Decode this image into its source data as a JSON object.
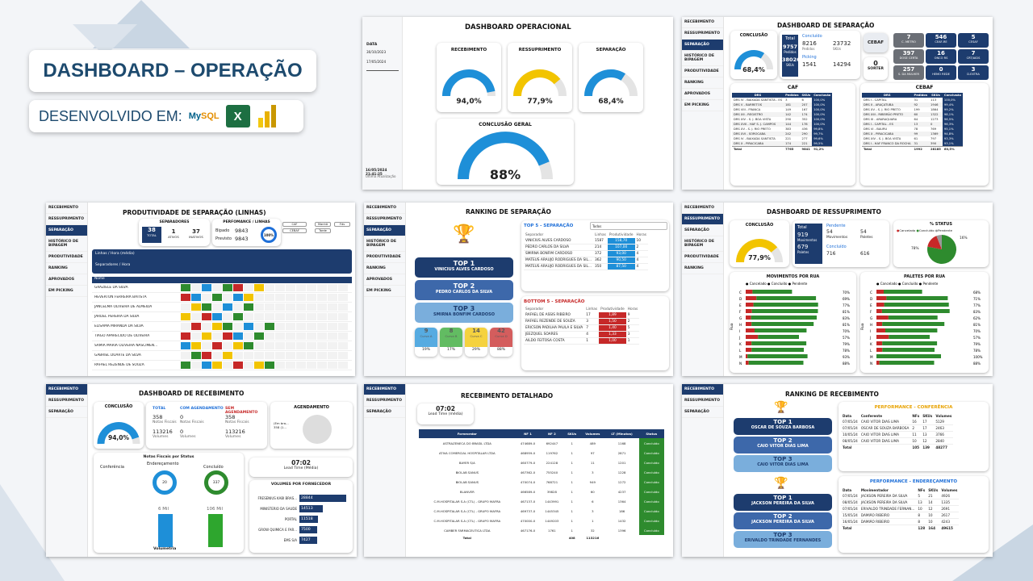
{
  "header": {
    "title": "DASHBOARD – OPERAÇÃO",
    "subtitle": "DESENVOLVIDO EM:",
    "tools": [
      "mysql-logo",
      "excel-logo",
      "powerbi-logo"
    ]
  },
  "colors": {
    "navy": "#1d3c6e",
    "blue": "#1e8fd8",
    "yellow": "#f2c400",
    "green": "#2e8b2e",
    "red": "#c62828"
  },
  "p1": {
    "title": "DASHBOARD OPERACIONAL",
    "filter_label": "DATA",
    "date_from": "30/10/2023",
    "date_to": "17/05/2024",
    "updated": "16/05/2024 21:41:25",
    "updated_label": "Ultima Atualização",
    "gauges": [
      {
        "label": "RECEBIMENTO",
        "value": "94,0%",
        "pct": 0.94,
        "color": "#1e8fd8"
      },
      {
        "label": "RESSUPRIMENTO",
        "value": "77,9%",
        "pct": 0.779,
        "color": "#f2c400"
      },
      {
        "label": "SEPARAÇÃO",
        "value": "68,4%",
        "pct": 0.684,
        "color": "#1e8fd8"
      }
    ],
    "geral_label": "CONCLUSÃO GERAL",
    "geral_value": "88%",
    "geral_pct": 0.88
  },
  "p2": {
    "title": "DASHBOARD DE SEPARAÇÃO",
    "menu": [
      "RECEBIMENTO",
      "RESSUPRIMENTO",
      "SEPARAÇÃO",
      "HISTÓRICO DE BIPAGEM",
      "PRODUTIVIDADE",
      "RANKING",
      "APROVADOS",
      "EM PICKING"
    ],
    "conclusao_label": "CONCLUSÃO",
    "conclusao_value": "68,4%",
    "conclusao_pct": 0.684,
    "total_label": "Total",
    "total_pedidos": "9757",
    "total_pedidos_label": "Pedidos",
    "total_skus": "38026",
    "total_skus_label": "SKUs",
    "concluido_label": "Concluído",
    "concluido_pedidos": "8216",
    "concluido_skus": "23732",
    "picking_label": "Picking",
    "picking_pedidos": "1541",
    "picking_skus": "14294",
    "pedidos_label": "Pedidos",
    "skus_label": "SKUs",
    "cebaf_label": "CEBAF",
    "sorter_value": "0",
    "sorter_label": "SORTER",
    "tiles": [
      {
        "v": "7",
        "l": "C. METRO"
      },
      {
        "v": "546",
        "l": "CEAF-RE"
      },
      {
        "v": "5",
        "l": "CESAF"
      },
      {
        "v": "397",
        "l": "DOSE CERTA"
      },
      {
        "v": "16",
        "l": "ONCO RS"
      },
      {
        "v": "7",
        "l": "CRT/AIDS"
      },
      {
        "v": "257",
        "l": "S. DA MULHER"
      },
      {
        "v": "0",
        "l": "HEMO REDE"
      },
      {
        "v": "3",
        "l": "D.EXTRA"
      }
    ],
    "caf": {
      "title": "CAF",
      "headers": [
        "DRS",
        "Pedidos",
        "SKUs",
        "Conclusão"
      ],
      "rows": [
        [
          "DRS IV - BAIXADA SANTISTA - ES",
          "3",
          "6",
          "100,0%"
        ],
        [
          "DRS V - BARRETOS",
          "181",
          "207",
          "100,0%"
        ],
        [
          "DRS VIII - FRANCA",
          "149",
          "167",
          "100,0%"
        ],
        [
          "DRS XII - REGISTRO",
          "142",
          "174",
          "100,0%"
        ],
        [
          "DRS XIV - S. J. BOA VISTA",
          "290",
          "352",
          "100,0%"
        ],
        [
          "DRS XVII - HAF S. J. CAMPOS",
          "144",
          "178",
          "100,0%"
        ],
        [
          "DRS XV - S. J. RIO PRETO",
          "383",
          "436",
          "99,8%"
        ],
        [
          "DRS XVI - SOROCABA",
          "242",
          "290",
          "99,7%"
        ],
        [
          "DRS IV - BAIXADA SANTISTA",
          "221",
          "277",
          "99,6%"
        ],
        [
          "DRS X - PIRACICABA",
          "174",
          "221",
          "99,5%"
        ]
      ],
      "total": [
        "Total",
        "7765",
        "9841",
        "91,2%"
      ]
    },
    "cebaf": {
      "title": "CEBAF",
      "headers": [
        "DRS",
        "Pedidos",
        "SKUs",
        "Conclusão"
      ],
      "rows": [
        [
          "DRS I - CAPITAL",
          "31",
          "113",
          "100,0%"
        ],
        [
          "DRS II - ARAÇATUBA",
          "92",
          "1946",
          "99,4%"
        ],
        [
          "DRS XV - S. J. RIO PRETO",
          "199",
          "1864",
          "99,2%"
        ],
        [
          "DRS XIII - RIBEIRÃO PRETO",
          "60",
          "1322",
          "98,1%"
        ],
        [
          "DRS III - ARARAQUARA",
          "64",
          "1273",
          "96,5%"
        ],
        [
          "DRS I - CAPITAL - ES",
          "13",
          "0",
          "96,3%"
        ],
        [
          "DRS VI - BAURU",
          "78",
          "769",
          "95,1%"
        ],
        [
          "DRS X - PIRACICABA",
          "99",
          "1369",
          "94,8%"
        ],
        [
          "DRS XIV - S. J. BOA VISTA",
          "61",
          "797",
          "93,3%"
        ],
        [
          "DRS I - HAF FRANCO DA ROCHA",
          "31",
          "390",
          "93,1%"
        ]
      ],
      "total": [
        "Total",
        "1992",
        "28185",
        "60,5%"
      ]
    }
  },
  "p3": {
    "title": "PRODUTIVIDADE DE SEPARAÇÃO (LINHAS)",
    "sep_label": "SEPARADORES",
    "total": "38",
    "total_l": "TOTAL",
    "ativos": "1",
    "ativos_l": "ATIVOS",
    "inativos": "37",
    "inativos_l": "INATIVOS",
    "perf_label": "PERFOMANCE / LINHAS",
    "bipado_l": "Bipado",
    "bipado": "9843",
    "previsto_l": "Previsto",
    "previsto": "9843",
    "perf_pct": "100%",
    "chip1": "CAF",
    "chip2": "CEBAF",
    "chip3": "Manhã",
    "chip4": "Tarde",
    "chip5": "Fds",
    "axis_label": "Linhas / Hora (média)",
    "axis2_label": "Separadores / Hora",
    "name_header": "Nome",
    "names": [
      "GRAZIELE DA SILVA",
      "HEVERTON FERREIRA BATISTA",
      "JANCELMA OLIVEIRA DE ALMEIDA",
      "JARDEL PEREIRA DA SILVA",
      "ELISAMA MIRANDA DA SILVA",
      "TIAGO APARECIDO DE OLIVEIRA",
      "SAMIA MARIA OLIVEIRA NASCIMEN...",
      "GABRIEL DUARTE DA SILVA",
      "RAFAEL REZENDE DE SOUZA"
    ]
  },
  "p4": {
    "title": "RANKING DE SEPARAÇÃO",
    "top": [
      {
        "t": "TOP 1",
        "n": "VINICIUS ALVES CARDOSO"
      },
      {
        "t": "TOP 2",
        "n": "PEDRO CARLOS DA SILVA"
      },
      {
        "t": "TOP 3",
        "n": "SMIRNA BONFIM CARDOSO"
      }
    ],
    "curvas": [
      {
        "v": "9",
        "l": "Curva A",
        "p": "19%"
      },
      {
        "v": "8",
        "l": "Curva B",
        "p": "17%"
      },
      {
        "v": "14",
        "l": "Curva C",
        "p": "29%"
      },
      {
        "v": "42",
        "l": "Curva D",
        "p": "88%"
      }
    ],
    "top5_title": "TOP 5 - SEPARAÇÃO",
    "bottom5_title": "BOTTOM 5 - SEPARAÇÃO",
    "filter": "Todos",
    "headers": [
      "Separador",
      "Linhas",
      "Produtividade",
      "Horas"
    ],
    "top5": [
      [
        "VINICIUS ALVES CARDOSO",
        "1587",
        "158,70",
        "10"
      ],
      [
        "PEDRO CARLOS DA SILVA",
        "214",
        "107,00",
        "2"
      ],
      [
        "SMIRNA BONFIM CARDOSO",
        "372",
        "93,00",
        "4"
      ],
      [
        "MATEUS ARAUJO RODRIGUES DA SIL...",
        "362",
        "90,50",
        "4"
      ],
      [
        "MATEUS ARAUJO RODRIGUES DA SIL...",
        "350",
        "87,50",
        "4"
      ]
    ],
    "bottom5": [
      [
        "RAFAEL DE ASSIS RIBEIRO",
        "17",
        "1,89",
        "9"
      ],
      [
        "RAFAEL REZENDE DE SOUZA",
        "3",
        "1,50",
        "2"
      ],
      [
        "ERICSON PADILHA PAULA E SILVA",
        "7",
        "1,40",
        "5"
      ],
      [
        "JEEZQUEL SOARES",
        "4",
        "1,33",
        "3"
      ],
      [
        "AILDO FEITOSA COSTA",
        "1",
        "1,00",
        "1"
      ]
    ]
  },
  "p5": {
    "title": "DASHBOARD DE RESSUPRIMENTO",
    "conclusao_label": "CONCLUSÃO",
    "conclusao_value": "77,9%",
    "total_label": "Total",
    "total_mov": "919",
    "mov_l": "Movimentos",
    "total_pal": "679",
    "pal_l": "Paletes",
    "pendente_label": "Pendente",
    "pend_mov": "54",
    "pend_pal": "54",
    "concluido_label": "Concluído",
    "conc_mov": "716",
    "conc_pal": "616",
    "status_title": "% STATUS",
    "status_legend": [
      "Cancelado",
      "Concluído",
      "Pendente"
    ],
    "status_values": [
      {
        "v": 78,
        "l": "78%"
      },
      {
        "v": 16,
        "l": "16%"
      },
      {
        "v": 6,
        "l": ""
      }
    ],
    "mov_title": "MOVIMENTOS POR RUA",
    "pal_title": "PALETES POR RUA",
    "rua_label": "Rua",
    "ruas": [
      "C",
      "D",
      "E",
      "F",
      "G",
      "H",
      "I",
      "J",
      "K",
      "L",
      "M",
      "N"
    ],
    "mov_pct": [
      "70%",
      "69%",
      "77%",
      "81%",
      "83%",
      "81%",
      "70%",
      "57%",
      "79%",
      "78%",
      "93%",
      "88%"
    ],
    "pal_pct": [
      "68%",
      "71%",
      "77%",
      "83%",
      "62%",
      "81%",
      "70%",
      "57%",
      "79%",
      "78%",
      "100%",
      "88%"
    ]
  },
  "p6": {
    "title": "DASHBOARD DE RECEBIMENTO",
    "conclusao_label": "CONCLUSÃO",
    "conclusao_value": "94,0%",
    "total_label": "TOTAL",
    "com_label": "COM AGENDAMENTO",
    "sem_label": "SEM AGENDAMENTO",
    "total_nf": "358",
    "com_nf": "0",
    "sem_nf": "358",
    "nf_l": "Notas Fiscais",
    "total_vol": "113216",
    "com_vol": "0",
    "sem_vol": "113216",
    "vol_l": "Volumes",
    "agend_title": "AGENDAMENTO",
    "agend_text": "(Em bra... 358 (1...",
    "nf_status_title": "Notas Fiscais por Status",
    "stages": [
      "Conferência",
      "Endereçamento",
      "Concluído"
    ],
    "enderec_val": "20",
    "concl_val": "337",
    "vol_a": "6 Mil",
    "vol_b": "106 Mil",
    "vol_axis": "Volumetria",
    "lead_value": "07:02",
    "lead_label": "Lead Time (Média)",
    "forn_title": "VOLUMES POR FORNECEDOR",
    "fornecedores": [
      {
        "n": "FRESENIUS KABI BRAS...",
        "v": "28844",
        "w": 1.0
      },
      {
        "n": "MINISTERIO DA SAUDE",
        "v": "14513",
        "w": 0.5
      },
      {
        "n": "PORTAL",
        "v": "11518",
        "w": 0.4
      },
      {
        "n": "GROW QUIMICA E FAR...",
        "v": "7500",
        "w": 0.26
      },
      {
        "n": "EMS S/A",
        "v": "7427",
        "w": 0.26
      }
    ]
  },
  "p7": {
    "title": "RECEBIMENTO DETALHADO",
    "lead_value": "07:02",
    "lead_label": "Lead Time (média)",
    "headers": [
      "Fornecedor",
      "NF 1",
      "NF 2",
      "SKUs",
      "Volumes",
      "LT (Minutos)",
      "Status"
    ],
    "rows": [
      [
        "ASTRAZENECA DO BRASIL LTDA",
        "474689-0",
        "692447",
        "1",
        "489",
        "1168",
        "Concluído"
      ],
      [
        "ATIVA COMERCIAL HOSPITALAR LTDA",
        "468959-0",
        "119762",
        "1",
        "97",
        "2871",
        "Concluído"
      ],
      [
        "BAYER S/A",
        "460779-0",
        "224128",
        "1",
        "11",
        "1201",
        "Concluído"
      ],
      [
        "BIOLAB SANUS",
        "467362-0",
        "755240",
        "1",
        "3",
        "1228",
        "Concluído"
      ],
      [
        "BIOLAB SANUS",
        "470074-0",
        "768721",
        "1",
        "949",
        "1272",
        "Concluído"
      ],
      [
        "BLANVER",
        "466589-0",
        "39828",
        "1",
        "60",
        "4237",
        "Concluído"
      ],
      [
        "C.M.HOSPITALAR S.A (CTL) - GRUPO MAFRA",
        "467137-0",
        "1443991",
        "1",
        "6",
        "1364",
        "Concluído"
      ],
      [
        "C.M.HOSPITALAR S.A (CTL) - GRUPO MAFRA",
        "469737-0",
        "1445345",
        "1",
        "3",
        "186",
        "Concluído"
      ],
      [
        "C.M.HOSPITALAR S.A (CTL) - GRUPO MAFRA",
        "470000-0",
        "1449203",
        "1",
        "1",
        "1432",
        "Concluído"
      ],
      [
        "CAMBER FARMACEUTICA LTDA",
        "467176-0",
        "1761",
        "1",
        "32",
        "1396",
        "Concluído"
      ]
    ],
    "total": [
      "Total",
      "",
      "",
      "408",
      "113216",
      "",
      ""
    ]
  },
  "p8": {
    "title": "RANKING DE RECEBIMENTO",
    "conf_top": [
      {
        "t": "TOP 1",
        "n": "OSCAR DE SOUZA BARBOSA"
      },
      {
        "t": "TOP 2",
        "n": "CAIO VITOR DIAS LIMA"
      },
      {
        "t": "TOP 3",
        "n": "CAIO VITOR DIAS LIMA"
      }
    ],
    "end_top": [
      {
        "t": "TOP 1",
        "n": "JACKSON PEREIRA DA SILVA"
      },
      {
        "t": "TOP 2",
        "n": "JACKSON PEREIRA DA SILVA"
      },
      {
        "t": "TOP 3",
        "n": "ERIVALDO TRINDADE FERNANDES"
      }
    ],
    "conf_title": "PERFORMANCE - CONFERÊNCIA",
    "end_title": "PERFORMANCE - ENDEREÇAMENTO",
    "conf_headers": [
      "Data",
      "Conferente",
      "NFs",
      "SKUs",
      "Volumes"
    ],
    "end_headers": [
      "Data",
      "Movimentador",
      "NFs",
      "SKUs",
      "Volumes"
    ],
    "conf_rows": [
      [
        "07/05/24",
        "CAIO VITOR DIAS LIMA",
        "16",
        "17",
        "5129"
      ],
      [
        "07/05/24",
        "OSCAR DE SOUZA BARBOSA",
        "2",
        "17",
        "2463"
      ],
      [
        "10/05/24",
        "CAIO VITOR DIAS LIMA",
        "11",
        "13",
        "3766"
      ],
      [
        "08/05/24",
        "CAIO VITOR DIAS LIMA",
        "10",
        "12",
        "2840"
      ]
    ],
    "conf_total": [
      "Total",
      "",
      "105",
      "139",
      "48277"
    ],
    "end_rows": [
      [
        "07/05/24",
        "JACKSON PEREIRA DA SILVA",
        "5",
        "21",
        "4926"
      ],
      [
        "08/05/24",
        "JACKSON PEREIRA DA SILVA",
        "13",
        "14",
        "1335"
      ],
      [
        "07/05/24",
        "ERIVALDO TRINDADE FERNAN...",
        "10",
        "12",
        "2691"
      ],
      [
        "15/05/24",
        "DAMIÃO RIBEIRO",
        "8",
        "10",
        "2617"
      ],
      [
        "16/05/24",
        "DAMIÃO RIBEIRO",
        "8",
        "10",
        "4243"
      ]
    ],
    "end_total": [
      "Total",
      "",
      "128",
      "164",
      "49615"
    ]
  }
}
